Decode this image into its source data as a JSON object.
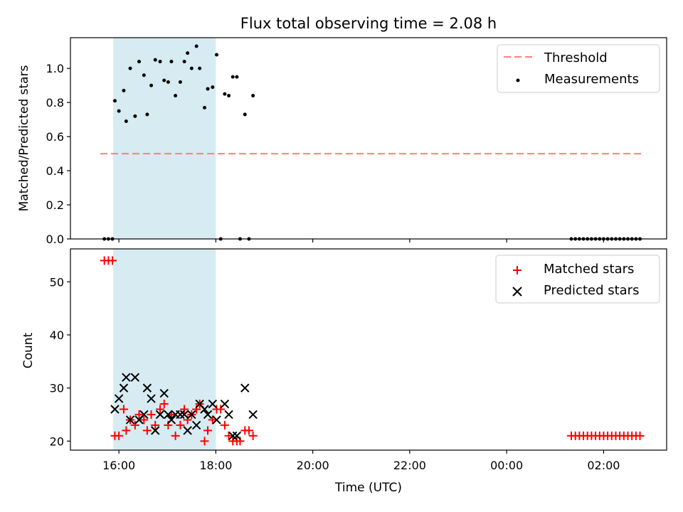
{
  "figure": {
    "title": "Flux total observing time = 2.08 h",
    "xlabel": "Time (UTC)"
  },
  "colors": {
    "threshold": "#ff7f7f",
    "measurement": "#000000",
    "matched": "#ff0000",
    "predicted": "#000000",
    "span": "#add8e6"
  },
  "chart_data": [
    {
      "type": "scatter",
      "ylabel": "Matched/Predicted stars",
      "ylim": [
        0,
        1.18
      ],
      "yticks": [
        0.0,
        0.2,
        0.4,
        0.6,
        0.8,
        1.0
      ],
      "ytick_labels": [
        "0.0",
        "0.2",
        "0.4",
        "0.6",
        "0.8",
        "1.0"
      ],
      "xlim": [
        15.0,
        27.3
      ],
      "xticks": [
        16,
        18,
        20,
        22,
        24,
        26
      ],
      "xtick_labels": [
        "16:00",
        "18:00",
        "20:00",
        "22:00",
        "00:00",
        "02:00"
      ],
      "shaded_span": [
        "15:53",
        "18:00"
      ],
      "legend_position": "upper right",
      "threshold": {
        "name": "Threshold",
        "y": 0.5,
        "x_range": [
          "15:37",
          "26:50"
        ]
      },
      "series": [
        {
          "name": "Measurements",
          "marker": "dot",
          "x": [
            "15:42",
            "15:47",
            "15:52",
            "15:55",
            "16:00",
            "16:06",
            "16:09",
            "16:14",
            "16:20",
            "16:25",
            "16:31",
            "16:35",
            "16:40",
            "16:45",
            "16:51",
            "16:56",
            "17:01",
            "17:05",
            "17:10",
            "17:16",
            "17:21",
            "17:25",
            "17:30",
            "17:36",
            "17:40",
            "17:46",
            "17:50",
            "17:56",
            "18:01",
            "18:06",
            "18:11",
            "18:16",
            "18:21",
            "18:26",
            "18:30",
            "18:36",
            "18:41",
            "18:46",
            "25:20",
            "25:25",
            "25:30",
            "25:35",
            "25:40",
            "25:45",
            "25:50",
            "25:55",
            "26:00",
            "26:05",
            "26:10",
            "26:15",
            "26:20",
            "26:25",
            "26:30",
            "26:35",
            "26:40",
            "26:45"
          ],
          "y": [
            0,
            0,
            0,
            0.81,
            0.75,
            0.87,
            0.69,
            1.0,
            0.72,
            1.04,
            0.96,
            0.73,
            0.9,
            1.05,
            1.04,
            0.93,
            0.92,
            1.04,
            0.84,
            0.92,
            1.04,
            1.09,
            1.0,
            1.13,
            1.0,
            0.77,
            0.88,
            0.89,
            1.08,
            0,
            0.85,
            0.84,
            0.95,
            0.95,
            0,
            0.73,
            0,
            0.84,
            0,
            0,
            0,
            0,
            0,
            0,
            0,
            0,
            0,
            0,
            0,
            0,
            0,
            0,
            0,
            0,
            0,
            0
          ]
        }
      ]
    },
    {
      "type": "scatter",
      "ylabel": "Count",
      "ylim": [
        18.3,
        56.2
      ],
      "yticks": [
        20,
        30,
        40,
        50
      ],
      "ytick_labels": [
        "20",
        "30",
        "40",
        "50"
      ],
      "xlim": [
        15.0,
        27.3
      ],
      "xticks": [
        16,
        18,
        20,
        22,
        24,
        26
      ],
      "xtick_labels": [
        "16:00",
        "18:00",
        "20:00",
        "22:00",
        "00:00",
        "02:00"
      ],
      "shaded_span": [
        "15:53",
        "18:00"
      ],
      "legend_position": "upper right",
      "series": [
        {
          "name": "Matched stars",
          "marker": "plus",
          "x": [
            "15:42",
            "15:47",
            "15:52",
            "15:55",
            "16:00",
            "16:06",
            "16:09",
            "16:14",
            "16:20",
            "16:25",
            "16:31",
            "16:35",
            "16:40",
            "16:45",
            "16:51",
            "16:56",
            "17:01",
            "17:05",
            "17:10",
            "17:16",
            "17:21",
            "17:25",
            "17:30",
            "17:36",
            "17:40",
            "17:46",
            "17:50",
            "17:56",
            "18:01",
            "18:06",
            "18:11",
            "18:16",
            "18:21",
            "18:26",
            "18:30",
            "18:36",
            "18:41",
            "18:46",
            "25:20",
            "25:25",
            "25:30",
            "25:35",
            "25:40",
            "25:45",
            "25:50",
            "25:55",
            "26:00",
            "26:05",
            "26:10",
            "26:15",
            "26:20",
            "26:25",
            "26:30",
            "26:35",
            "26:40",
            "26:45"
          ],
          "y": [
            54,
            54,
            54,
            21,
            21,
            26,
            22,
            24,
            23,
            25,
            24,
            22,
            25,
            23,
            26,
            27,
            23,
            25,
            21,
            23,
            26,
            24,
            25,
            26,
            27,
            20,
            22,
            24,
            26,
            26,
            23,
            21,
            20,
            20,
            20,
            22,
            22,
            21,
            21,
            21,
            21,
            21,
            21,
            21,
            21,
            21,
            21,
            21,
            21,
            21,
            21,
            21,
            21,
            21,
            21,
            21
          ]
        },
        {
          "name": "Predicted stars",
          "marker": "x",
          "x": [
            "15:55",
            "16:00",
            "16:06",
            "16:09",
            "16:14",
            "16:20",
            "16:25",
            "16:31",
            "16:35",
            "16:40",
            "16:45",
            "16:51",
            "16:56",
            "17:01",
            "17:05",
            "17:10",
            "17:16",
            "17:21",
            "17:25",
            "17:30",
            "17:36",
            "17:40",
            "17:46",
            "17:50",
            "17:56",
            "18:01",
            "18:11",
            "18:16",
            "18:21",
            "18:26",
            "18:36",
            "18:46"
          ],
          "y": [
            26,
            28,
            30,
            32,
            24,
            32,
            24,
            25,
            30,
            28,
            22,
            25,
            29,
            25,
            24,
            25,
            25,
            25,
            22,
            25,
            23,
            27,
            26,
            25,
            27,
            24,
            27,
            25,
            21,
            21,
            30,
            25
          ]
        }
      ]
    }
  ]
}
